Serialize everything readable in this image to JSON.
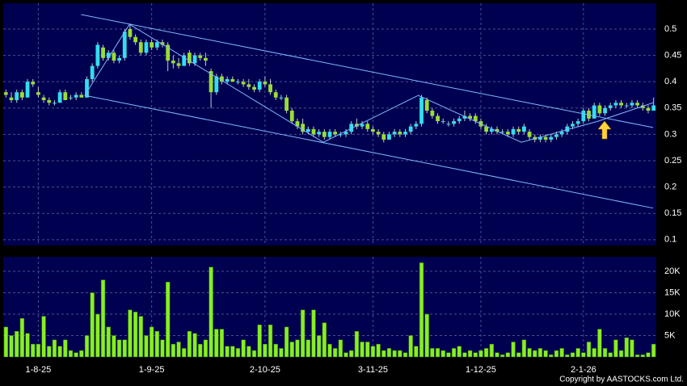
{
  "chart_data": {
    "type": "candlestick",
    "up_color": "#33ddee",
    "down_color": "#99dd33",
    "xlim": [
      -0.5,
      120.5
    ],
    "xticks": [
      {
        "value": 6,
        "label": "1-8-25"
      },
      {
        "value": 27,
        "label": "1-9-25"
      },
      {
        "value": 48,
        "label": "2-10-25"
      },
      {
        "value": 68,
        "label": "3-11-25"
      },
      {
        "value": 88,
        "label": "1-12-25"
      },
      {
        "value": 107,
        "label": "2-1-26"
      }
    ],
    "ylim": [
      0.089,
      0.549
    ],
    "yticks": [
      0.1,
      0.15,
      0.2,
      0.25,
      0.3,
      0.35,
      0.4,
      0.45,
      0.5
    ],
    "grid": true,
    "candles": [
      [
        0.38,
        0.385,
        0.37,
        0.375
      ],
      [
        0.37,
        0.38,
        0.36,
        0.365
      ],
      [
        0.365,
        0.385,
        0.36,
        0.38
      ],
      [
        0.38,
        0.385,
        0.365,
        0.37
      ],
      [
        0.37,
        0.405,
        0.37,
        0.4
      ],
      [
        0.4,
        0.405,
        0.39,
        0.395
      ],
      [
        0.38,
        0.39,
        0.37,
        0.375
      ],
      [
        0.37,
        0.375,
        0.36,
        0.365
      ],
      [
        0.365,
        0.37,
        0.355,
        0.36
      ],
      [
        0.36,
        0.365,
        0.355,
        0.36
      ],
      [
        0.36,
        0.385,
        0.36,
        0.38
      ],
      [
        0.38,
        0.385,
        0.365,
        0.365
      ],
      [
        0.37,
        0.375,
        0.365,
        0.37
      ],
      [
        0.37,
        0.38,
        0.365,
        0.375
      ],
      [
        0.375,
        0.38,
        0.37,
        0.37
      ],
      [
        0.37,
        0.41,
        0.37,
        0.405
      ],
      [
        0.405,
        0.435,
        0.4,
        0.43
      ],
      [
        0.43,
        0.475,
        0.425,
        0.47
      ],
      [
        0.465,
        0.47,
        0.44,
        0.445
      ],
      [
        0.445,
        0.46,
        0.44,
        0.455
      ],
      [
        0.455,
        0.46,
        0.435,
        0.44
      ],
      [
        0.44,
        0.45,
        0.435,
        0.445
      ],
      [
        0.445,
        0.5,
        0.44,
        0.495
      ],
      [
        0.5,
        0.51,
        0.48,
        0.485
      ],
      [
        0.485,
        0.49,
        0.47,
        0.475
      ],
      [
        0.475,
        0.48,
        0.45,
        0.455
      ],
      [
        0.455,
        0.48,
        0.45,
        0.475
      ],
      [
        0.475,
        0.48,
        0.46,
        0.465
      ],
      [
        0.465,
        0.48,
        0.46,
        0.475
      ],
      [
        0.475,
        0.48,
        0.465,
        0.47
      ],
      [
        0.47,
        0.475,
        0.42,
        0.44
      ],
      [
        0.44,
        0.45,
        0.425,
        0.435
      ],
      [
        0.435,
        0.445,
        0.425,
        0.43
      ],
      [
        0.43,
        0.455,
        0.43,
        0.45
      ],
      [
        0.455,
        0.46,
        0.43,
        0.435
      ],
      [
        0.435,
        0.455,
        0.43,
        0.45
      ],
      [
        0.45,
        0.455,
        0.44,
        0.445
      ],
      [
        0.445,
        0.455,
        0.43,
        0.44
      ],
      [
        0.42,
        0.425,
        0.35,
        0.38
      ],
      [
        0.38,
        0.415,
        0.375,
        0.41
      ],
      [
        0.41,
        0.415,
        0.395,
        0.4
      ],
      [
        0.4,
        0.41,
        0.395,
        0.405
      ],
      [
        0.405,
        0.41,
        0.4,
        0.4
      ],
      [
        0.4,
        0.405,
        0.395,
        0.4
      ],
      [
        0.4,
        0.405,
        0.39,
        0.395
      ],
      [
        0.395,
        0.405,
        0.385,
        0.39
      ],
      [
        0.39,
        0.395,
        0.38,
        0.385
      ],
      [
        0.385,
        0.405,
        0.38,
        0.4
      ],
      [
        0.4,
        0.41,
        0.39,
        0.395
      ],
      [
        0.395,
        0.405,
        0.375,
        0.38
      ],
      [
        0.38,
        0.385,
        0.365,
        0.37
      ],
      [
        0.37,
        0.375,
        0.365,
        0.37
      ],
      [
        0.37,
        0.375,
        0.34,
        0.345
      ],
      [
        0.345,
        0.35,
        0.32,
        0.325
      ],
      [
        0.325,
        0.33,
        0.31,
        0.315
      ],
      [
        0.32,
        0.33,
        0.3,
        0.305
      ],
      [
        0.305,
        0.315,
        0.3,
        0.31
      ],
      [
        0.31,
        0.315,
        0.295,
        0.3
      ],
      [
        0.3,
        0.31,
        0.295,
        0.305
      ],
      [
        0.305,
        0.31,
        0.29,
        0.295
      ],
      [
        0.295,
        0.31,
        0.29,
        0.305
      ],
      [
        0.305,
        0.31,
        0.295,
        0.3
      ],
      [
        0.3,
        0.305,
        0.295,
        0.3
      ],
      [
        0.3,
        0.31,
        0.295,
        0.305
      ],
      [
        0.305,
        0.325,
        0.3,
        0.32
      ],
      [
        0.32,
        0.33,
        0.31,
        0.315
      ],
      [
        0.315,
        0.325,
        0.31,
        0.32
      ],
      [
        0.32,
        0.325,
        0.305,
        0.31
      ],
      [
        0.31,
        0.315,
        0.3,
        0.305
      ],
      [
        0.305,
        0.31,
        0.295,
        0.3
      ],
      [
        0.3,
        0.305,
        0.285,
        0.29
      ],
      [
        0.29,
        0.305,
        0.29,
        0.3
      ],
      [
        0.3,
        0.31,
        0.295,
        0.305
      ],
      [
        0.305,
        0.31,
        0.295,
        0.3
      ],
      [
        0.3,
        0.31,
        0.295,
        0.305
      ],
      [
        0.305,
        0.32,
        0.3,
        0.315
      ],
      [
        0.315,
        0.325,
        0.31,
        0.32
      ],
      [
        0.32,
        0.375,
        0.315,
        0.37
      ],
      [
        0.365,
        0.37,
        0.34,
        0.345
      ],
      [
        0.345,
        0.35,
        0.33,
        0.335
      ],
      [
        0.335,
        0.34,
        0.32,
        0.325
      ],
      [
        0.325,
        0.33,
        0.32,
        0.325
      ],
      [
        0.32,
        0.325,
        0.315,
        0.32
      ],
      [
        0.32,
        0.33,
        0.315,
        0.325
      ],
      [
        0.325,
        0.335,
        0.32,
        0.33
      ],
      [
        0.33,
        0.345,
        0.325,
        0.335
      ],
      [
        0.335,
        0.34,
        0.325,
        0.33
      ],
      [
        0.335,
        0.34,
        0.32,
        0.325
      ],
      [
        0.325,
        0.33,
        0.31,
        0.315
      ],
      [
        0.315,
        0.32,
        0.3,
        0.305
      ],
      [
        0.305,
        0.315,
        0.3,
        0.31
      ],
      [
        0.31,
        0.315,
        0.3,
        0.305
      ],
      [
        0.305,
        0.31,
        0.3,
        0.305
      ],
      [
        0.305,
        0.31,
        0.295,
        0.3
      ],
      [
        0.3,
        0.315,
        0.295,
        0.31
      ],
      [
        0.31,
        0.315,
        0.3,
        0.305
      ],
      [
        0.305,
        0.32,
        0.3,
        0.315
      ],
      [
        0.305,
        0.31,
        0.29,
        0.295
      ],
      [
        0.295,
        0.3,
        0.285,
        0.29
      ],
      [
        0.29,
        0.3,
        0.285,
        0.295
      ],
      [
        0.295,
        0.3,
        0.285,
        0.29
      ],
      [
        0.29,
        0.3,
        0.285,
        0.295
      ],
      [
        0.295,
        0.305,
        0.29,
        0.3
      ],
      [
        0.3,
        0.31,
        0.295,
        0.305
      ],
      [
        0.305,
        0.32,
        0.3,
        0.315
      ],
      [
        0.315,
        0.325,
        0.31,
        0.32
      ],
      [
        0.32,
        0.33,
        0.315,
        0.325
      ],
      [
        0.325,
        0.35,
        0.32,
        0.345
      ],
      [
        0.345,
        0.35,
        0.325,
        0.33
      ],
      [
        0.33,
        0.36,
        0.33,
        0.355
      ],
      [
        0.355,
        0.36,
        0.335,
        0.34
      ],
      [
        0.34,
        0.355,
        0.335,
        0.35
      ],
      [
        0.35,
        0.36,
        0.345,
        0.355
      ],
      [
        0.355,
        0.365,
        0.35,
        0.36
      ],
      [
        0.36,
        0.365,
        0.35,
        0.355
      ],
      [
        0.355,
        0.36,
        0.35,
        0.355
      ],
      [
        0.355,
        0.365,
        0.35,
        0.36
      ],
      [
        0.36,
        0.365,
        0.35,
        0.355
      ],
      [
        0.355,
        0.36,
        0.345,
        0.35
      ],
      [
        0.35,
        0.355,
        0.34,
        0.345
      ],
      [
        0.345,
        0.37,
        0.345,
        0.355
      ]
    ],
    "trendlines": [
      {
        "x": [
          13.9,
          119.9
        ],
        "y": [
          0.5276,
          0.313
        ],
        "color": "#7fb8ff"
      },
      {
        "x": [
          14.6,
          119.9
        ],
        "y": [
          0.374,
          0.16
        ],
        "color": "#7fb8ff"
      },
      {
        "x": [
          14.6,
          22.9,
          58.8,
          76.4,
          95.5,
          109.7,
          119.9
        ],
        "y": [
          0.374,
          0.509,
          0.285,
          0.374,
          0.285,
          0.325,
          0.36
        ],
        "color": "#7fb8ff"
      }
    ],
    "volume": {
      "color": "#88ee22",
      "ylim": [
        0,
        23400
      ],
      "yticks": [
        {
          "value": 5000,
          "label": "5K"
        },
        {
          "value": 10000,
          "label": "10K"
        },
        {
          "value": 15000,
          "label": "15K"
        },
        {
          "value": 20000,
          "label": "20K"
        }
      ],
      "values": [
        7000,
        5000,
        6000,
        9000,
        5500,
        3000,
        3000,
        9500,
        2500,
        4000,
        2500,
        4000,
        1500,
        1000,
        1500,
        5000,
        15000,
        10000,
        18000,
        7000,
        5000,
        4000,
        4000,
        11000,
        10500,
        9500,
        5000,
        7000,
        6000,
        4000,
        17500,
        3000,
        3500,
        2000,
        6000,
        5500,
        3000,
        4000,
        21000,
        6500,
        6500,
        2500,
        2500,
        2000,
        4000,
        2500,
        1500,
        7500,
        3000,
        7500,
        3000,
        2000,
        7000,
        3500,
        4000,
        11000,
        4000,
        11000,
        5000,
        8000,
        3000,
        2000,
        4000,
        1000,
        1500,
        6000,
        3500,
        3500,
        2500,
        3000,
        1500,
        2000,
        1500,
        1500,
        1000,
        5000,
        2500,
        22000,
        10000,
        2000,
        2000,
        1500,
        1000,
        2000,
        2500,
        1000,
        1500,
        1000,
        1500,
        2000,
        3000,
        1000,
        500,
        1000,
        3500,
        1000,
        4000,
        2000,
        1500,
        2000,
        1500,
        500,
        1500,
        2000,
        500,
        1000,
        2000,
        1000,
        3500,
        2000,
        6500,
        2000,
        1000,
        4000,
        1500,
        4500,
        4000,
        500,
        500,
        1000,
        3000
      ]
    },
    "copyright": "Copyright by AASTOCKS.com Ltd."
  }
}
